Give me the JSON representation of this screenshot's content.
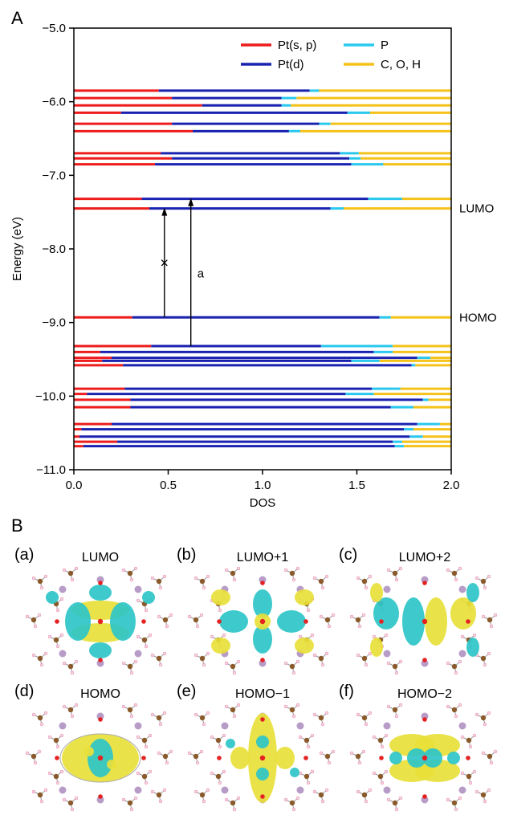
{
  "panel_a_label": "A",
  "panel_b_label": "B",
  "chart_data": {
    "type": "bar",
    "orientation": "horizontal-stacked",
    "xlabel": "DOS",
    "ylabel": "Energy (eV)",
    "xlim": [
      0.0,
      2.0
    ],
    "ylim": [
      -11.0,
      -5.0
    ],
    "xticks": [
      "0.0",
      "0.5",
      "1.0",
      "1.5",
      "2.0"
    ],
    "yticks": [
      "−5.0",
      "−6.0",
      "−7.0",
      "−8.0",
      "−9.0",
      "−10.0",
      "−11.0"
    ],
    "ytick_values": [
      -5.0,
      -6.0,
      -7.0,
      -8.0,
      -9.0,
      -10.0,
      -11.0
    ],
    "xtick_values": [
      0.0,
      0.5,
      1.0,
      1.5,
      2.0
    ],
    "legend": [
      {
        "name": "Pt(s, p)",
        "color": "#ee1c1c"
      },
      {
        "name": "Pt(d)",
        "color": "#1a22b0"
      },
      {
        "name": "P",
        "color": "#29c8ee"
      },
      {
        "name": "C, O, H",
        "color": "#f5c21a"
      }
    ],
    "legend_placement": "top-right",
    "levels": [
      {
        "energy": -5.85,
        "segments": [
          0.45,
          0.8,
          0.05,
          0.7
        ]
      },
      {
        "energy": -5.95,
        "segments": [
          0.52,
          0.58,
          0.08,
          0.82
        ]
      },
      {
        "energy": -6.05,
        "segments": [
          0.68,
          0.42,
          0.05,
          0.85
        ]
      },
      {
        "energy": -6.15,
        "segments": [
          0.25,
          1.2,
          0.12,
          0.43
        ]
      },
      {
        "energy": -6.3,
        "segments": [
          0.52,
          0.78,
          0.06,
          0.64
        ]
      },
      {
        "energy": -6.4,
        "segments": [
          0.63,
          0.51,
          0.06,
          0.8
        ]
      },
      {
        "energy": -6.7,
        "segments": [
          0.46,
          0.95,
          0.1,
          0.49
        ]
      },
      {
        "energy": -6.77,
        "segments": [
          0.52,
          0.94,
          0.06,
          0.48
        ]
      },
      {
        "energy": -6.85,
        "segments": [
          0.43,
          1.04,
          0.17,
          0.36
        ]
      },
      {
        "energy": -7.32,
        "segments": [
          0.36,
          1.2,
          0.18,
          0.26
        ]
      },
      {
        "energy": -7.45,
        "segments": [
          0.4,
          0.96,
          0.07,
          0.57
        ]
      },
      {
        "energy": -8.93,
        "segments": [
          0.31,
          1.31,
          0.06,
          0.32
        ]
      },
      {
        "energy": -9.32,
        "segments": [
          0.41,
          0.9,
          0.38,
          0.31
        ]
      },
      {
        "energy": -9.4,
        "segments": [
          0.14,
          1.45,
          0.1,
          0.31
        ]
      },
      {
        "energy": -9.48,
        "segments": [
          0.2,
          1.62,
          0.07,
          0.11
        ]
      },
      {
        "energy": -9.52,
        "segments": [
          0.15,
          1.32,
          0.15,
          0.38
        ]
      },
      {
        "energy": -9.58,
        "segments": [
          0.26,
          1.53,
          0.02,
          0.19
        ]
      },
      {
        "energy": -9.9,
        "segments": [
          0.27,
          1.31,
          0.15,
          0.27
        ]
      },
      {
        "energy": -9.97,
        "segments": [
          0.07,
          1.37,
          0.15,
          0.41
        ]
      },
      {
        "energy": -10.05,
        "segments": [
          0.3,
          1.55,
          0.03,
          0.12
        ]
      },
      {
        "energy": -10.15,
        "segments": [
          0.3,
          1.38,
          0.12,
          0.2
        ]
      },
      {
        "energy": -10.38,
        "segments": [
          0.2,
          1.62,
          0.12,
          0.06
        ]
      },
      {
        "energy": -10.45,
        "segments": [
          0.04,
          1.71,
          0.05,
          0.2
        ]
      },
      {
        "energy": -10.55,
        "segments": [
          0.03,
          1.75,
          0.07,
          0.15
        ]
      },
      {
        "energy": -10.62,
        "segments": [
          0.23,
          1.46,
          0.05,
          0.26
        ]
      },
      {
        "energy": -10.68,
        "segments": [
          0.05,
          1.65,
          0.05,
          0.25
        ]
      }
    ],
    "annotations": [
      {
        "text": "LUMO",
        "energy": -7.45
      },
      {
        "text": "HOMO",
        "energy": -8.93
      }
    ],
    "transitions": [
      {
        "x": 0.48,
        "from": -8.93,
        "to": -7.45,
        "mark": "×",
        "forbidden": true
      },
      {
        "x": 0.62,
        "from": -9.32,
        "to": -7.32,
        "mark": "a",
        "forbidden": false
      }
    ]
  },
  "orbitals": [
    {
      "letter": "(a)",
      "name": "LUMO"
    },
    {
      "letter": "(b)",
      "name": "LUMO+1"
    },
    {
      "letter": "(c)",
      "name": "LUMO+2"
    },
    {
      "letter": "(d)",
      "name": "HOMO"
    },
    {
      "letter": "(e)",
      "name": "HOMO−1"
    },
    {
      "letter": "(f)",
      "name": "HOMO−2"
    }
  ],
  "colors": {
    "lobe_positive": "#2ec6c8",
    "lobe_negative": "#e8e03a",
    "atom_c": "#8b5a2b",
    "atom_o": "#e52222",
    "atom_p": "#b89cc8",
    "atom_h": "#f3d6d6"
  }
}
